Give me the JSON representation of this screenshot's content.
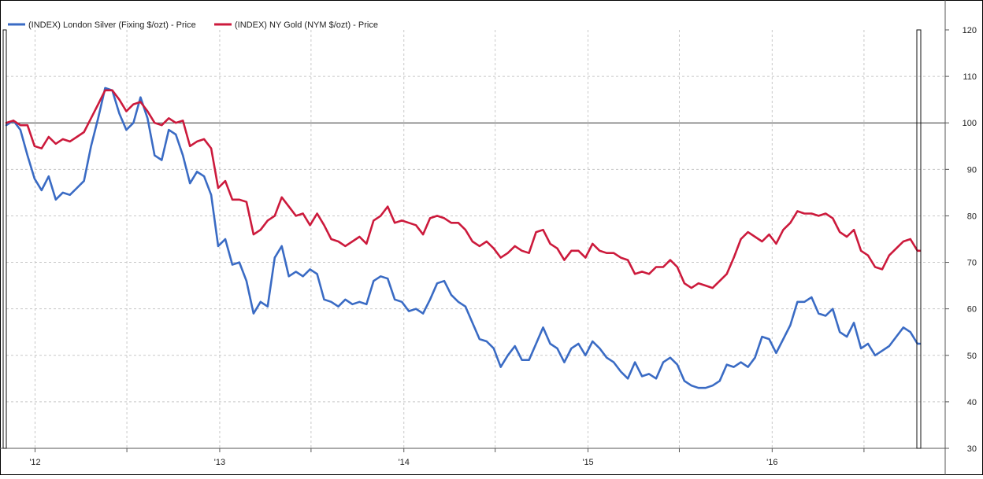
{
  "chart_data": {
    "type": "line",
    "title": "",
    "xlabel": "",
    "ylabel": "",
    "ylim": [
      30,
      120
    ],
    "y_ticks": [
      30,
      40,
      50,
      60,
      70,
      80,
      90,
      100,
      110,
      120
    ],
    "y_axis_side": "right",
    "x_ticks": [
      "'12",
      "'13",
      "'14",
      "'15",
      "'16"
    ],
    "x_range": [
      "2011-11-05",
      "2016-10-20"
    ],
    "x_tick_dates": [
      "2012-01-01",
      "2013-01-01",
      "2014-01-01",
      "2015-01-01",
      "2016-01-01"
    ],
    "reference_line": 100,
    "grid": true,
    "legend_position": "top-left",
    "series": [
      {
        "name": "(INDEX) London Silver (Fixing $/ozt) - Price",
        "color": "#3a6bc4",
        "points": [
          [
            "2011-11-05",
            99.5
          ],
          [
            "2011-11-19",
            100.5
          ],
          [
            "2011-12-03",
            98.5
          ],
          [
            "2011-12-17",
            93
          ],
          [
            "2011-12-31",
            88
          ],
          [
            "2012-01-14",
            85.5
          ],
          [
            "2012-01-28",
            88.5
          ],
          [
            "2012-02-11",
            83.5
          ],
          [
            "2012-02-25",
            85
          ],
          [
            "2012-03-10",
            84.5
          ],
          [
            "2012-03-24",
            86
          ],
          [
            "2012-04-07",
            87.5
          ],
          [
            "2012-04-21",
            95
          ],
          [
            "2012-05-05",
            101
          ],
          [
            "2012-05-19",
            107.5
          ],
          [
            "2012-06-02",
            107
          ],
          [
            "2012-06-16",
            102
          ],
          [
            "2012-06-30",
            98.5
          ],
          [
            "2012-07-14",
            100
          ],
          [
            "2012-07-28",
            105.5
          ],
          [
            "2012-08-11",
            101
          ],
          [
            "2012-08-25",
            93
          ],
          [
            "2012-09-08",
            92
          ],
          [
            "2012-09-22",
            98.5
          ],
          [
            "2012-10-06",
            97.5
          ],
          [
            "2012-10-20",
            93
          ],
          [
            "2012-11-03",
            87
          ],
          [
            "2012-11-17",
            89.5
          ],
          [
            "2012-12-01",
            88.5
          ],
          [
            "2012-12-15",
            84.5
          ],
          [
            "2012-12-29",
            73.5
          ],
          [
            "2013-01-12",
            75
          ],
          [
            "2013-01-26",
            69.5
          ],
          [
            "2013-02-09",
            70
          ],
          [
            "2013-02-23",
            66
          ],
          [
            "2013-03-09",
            59
          ],
          [
            "2013-03-23",
            61.5
          ],
          [
            "2013-04-06",
            60.5
          ],
          [
            "2013-04-20",
            71
          ],
          [
            "2013-05-04",
            73.5
          ],
          [
            "2013-05-18",
            67
          ],
          [
            "2013-06-01",
            68
          ],
          [
            "2013-06-15",
            67
          ],
          [
            "2013-06-29",
            68.5
          ],
          [
            "2013-07-13",
            67.5
          ],
          [
            "2013-07-27",
            62
          ],
          [
            "2013-08-10",
            61.5
          ],
          [
            "2013-08-24",
            60.5
          ],
          [
            "2013-09-07",
            62
          ],
          [
            "2013-09-21",
            61
          ],
          [
            "2013-10-05",
            61.5
          ],
          [
            "2013-10-19",
            61
          ],
          [
            "2013-11-02",
            66
          ],
          [
            "2013-11-16",
            67
          ],
          [
            "2013-11-30",
            66.5
          ],
          [
            "2013-12-14",
            62
          ],
          [
            "2013-12-28",
            61.5
          ],
          [
            "2014-01-11",
            59.5
          ],
          [
            "2014-01-25",
            60
          ],
          [
            "2014-02-08",
            59
          ],
          [
            "2014-02-22",
            62
          ],
          [
            "2014-03-08",
            65.5
          ],
          [
            "2014-03-22",
            66
          ],
          [
            "2014-04-05",
            63
          ],
          [
            "2014-04-19",
            61.5
          ],
          [
            "2014-05-03",
            60.5
          ],
          [
            "2014-05-17",
            57
          ],
          [
            "2014-05-31",
            53.5
          ],
          [
            "2014-06-14",
            53
          ],
          [
            "2014-06-28",
            51.5
          ],
          [
            "2014-07-12",
            47.5
          ],
          [
            "2014-07-26",
            50
          ],
          [
            "2014-08-09",
            52
          ],
          [
            "2014-08-23",
            49
          ],
          [
            "2014-09-06",
            49
          ],
          [
            "2014-09-20",
            52.5
          ],
          [
            "2014-10-04",
            56
          ],
          [
            "2014-10-18",
            52.5
          ],
          [
            "2014-11-01",
            51.5
          ],
          [
            "2014-11-15",
            48.5
          ],
          [
            "2014-11-29",
            51.5
          ],
          [
            "2014-12-13",
            52.5
          ],
          [
            "2014-12-27",
            50
          ],
          [
            "2015-01-10",
            53
          ],
          [
            "2015-01-24",
            51.5
          ],
          [
            "2015-02-07",
            49.5
          ],
          [
            "2015-02-21",
            48.5
          ],
          [
            "2015-03-07",
            46.5
          ],
          [
            "2015-03-21",
            45
          ],
          [
            "2015-04-04",
            48.5
          ],
          [
            "2015-04-18",
            45.5
          ],
          [
            "2015-05-02",
            46
          ],
          [
            "2015-05-16",
            45
          ],
          [
            "2015-05-30",
            48.5
          ],
          [
            "2015-06-13",
            49.5
          ],
          [
            "2015-06-27",
            48
          ],
          [
            "2015-07-11",
            44.5
          ],
          [
            "2015-07-25",
            43.5
          ],
          [
            "2015-08-08",
            43
          ],
          [
            "2015-08-22",
            43
          ],
          [
            "2015-09-05",
            43.5
          ],
          [
            "2015-09-19",
            44.5
          ],
          [
            "2015-10-03",
            48
          ],
          [
            "2015-10-17",
            47.5
          ],
          [
            "2015-10-31",
            48.5
          ],
          [
            "2015-11-14",
            47.5
          ],
          [
            "2015-11-28",
            49.5
          ],
          [
            "2015-12-12",
            54
          ],
          [
            "2015-12-26",
            53.5
          ],
          [
            "2016-01-09",
            50.5
          ],
          [
            "2016-01-23",
            53.5
          ],
          [
            "2016-02-06",
            56.5
          ],
          [
            "2016-02-20",
            61.5
          ],
          [
            "2016-03-05",
            61.5
          ],
          [
            "2016-03-19",
            62.5
          ],
          [
            "2016-04-02",
            59
          ],
          [
            "2016-04-16",
            58.5
          ],
          [
            "2016-04-30",
            60
          ],
          [
            "2016-05-14",
            55
          ],
          [
            "2016-05-28",
            54
          ],
          [
            "2016-06-11",
            57
          ],
          [
            "2016-06-25",
            51.5
          ],
          [
            "2016-07-09",
            52.5
          ],
          [
            "2016-07-23",
            50
          ],
          [
            "2016-08-06",
            51
          ],
          [
            "2016-08-20",
            52
          ],
          [
            "2016-09-03",
            54
          ],
          [
            "2016-09-17",
            56
          ],
          [
            "2016-10-01",
            55
          ],
          [
            "2016-10-15",
            52.5
          ],
          [
            "2016-10-20",
            52.5
          ]
        ]
      },
      {
        "name": "(INDEX) NY Gold (NYM $/ozt) - Price",
        "color": "#cc1a3c",
        "points": [
          [
            "2011-11-05",
            100
          ],
          [
            "2011-11-19",
            100.5
          ],
          [
            "2011-12-03",
            99.5
          ],
          [
            "2011-12-17",
            99.5
          ],
          [
            "2011-12-31",
            95
          ],
          [
            "2012-01-14",
            94.5
          ],
          [
            "2012-01-28",
            97
          ],
          [
            "2012-02-11",
            95.5
          ],
          [
            "2012-02-25",
            96.5
          ],
          [
            "2012-03-10",
            96
          ],
          [
            "2012-03-24",
            97
          ],
          [
            "2012-04-07",
            98
          ],
          [
            "2012-04-21",
            101
          ],
          [
            "2012-05-05",
            104
          ],
          [
            "2012-05-19",
            107
          ],
          [
            "2012-06-02",
            107
          ],
          [
            "2012-06-16",
            105
          ],
          [
            "2012-06-30",
            102.5
          ],
          [
            "2012-07-14",
            104
          ],
          [
            "2012-07-28",
            104.5
          ],
          [
            "2012-08-11",
            102.5
          ],
          [
            "2012-08-25",
            100
          ],
          [
            "2012-09-08",
            99.5
          ],
          [
            "2012-09-22",
            101
          ],
          [
            "2012-10-06",
            100
          ],
          [
            "2012-10-20",
            100.5
          ],
          [
            "2012-11-03",
            95
          ],
          [
            "2012-11-17",
            96
          ],
          [
            "2012-12-01",
            96.5
          ],
          [
            "2012-12-15",
            94.5
          ],
          [
            "2012-12-29",
            86
          ],
          [
            "2013-01-12",
            87.5
          ],
          [
            "2013-01-26",
            83.5
          ],
          [
            "2013-02-09",
            83.5
          ],
          [
            "2013-02-23",
            83
          ],
          [
            "2013-03-09",
            76
          ],
          [
            "2013-03-23",
            77
          ],
          [
            "2013-04-06",
            79
          ],
          [
            "2013-04-20",
            80
          ],
          [
            "2013-05-04",
            84
          ],
          [
            "2013-05-18",
            82
          ],
          [
            "2013-06-01",
            80
          ],
          [
            "2013-06-15",
            80.5
          ],
          [
            "2013-06-29",
            78
          ],
          [
            "2013-07-13",
            80.5
          ],
          [
            "2013-07-27",
            78
          ],
          [
            "2013-08-10",
            75
          ],
          [
            "2013-08-24",
            74.5
          ],
          [
            "2013-09-07",
            73.5
          ],
          [
            "2013-09-21",
            74.5
          ],
          [
            "2013-10-05",
            75.5
          ],
          [
            "2013-10-19",
            74
          ],
          [
            "2013-11-02",
            79
          ],
          [
            "2013-11-16",
            80
          ],
          [
            "2013-11-30",
            82
          ],
          [
            "2013-12-14",
            78.5
          ],
          [
            "2013-12-28",
            79
          ],
          [
            "2014-01-11",
            78.5
          ],
          [
            "2014-01-25",
            78
          ],
          [
            "2014-02-08",
            76
          ],
          [
            "2014-02-22",
            79.5
          ],
          [
            "2014-03-08",
            80
          ],
          [
            "2014-03-22",
            79.5
          ],
          [
            "2014-04-05",
            78.5
          ],
          [
            "2014-04-19",
            78.5
          ],
          [
            "2014-05-03",
            77
          ],
          [
            "2014-05-17",
            74.5
          ],
          [
            "2014-05-31",
            73.5
          ],
          [
            "2014-06-14",
            74.5
          ],
          [
            "2014-06-28",
            73
          ],
          [
            "2014-07-12",
            71
          ],
          [
            "2014-07-26",
            72
          ],
          [
            "2014-08-09",
            73.5
          ],
          [
            "2014-08-23",
            72.5
          ],
          [
            "2014-09-06",
            72
          ],
          [
            "2014-09-20",
            76.5
          ],
          [
            "2014-10-04",
            77
          ],
          [
            "2014-10-18",
            74
          ],
          [
            "2014-11-01",
            73
          ],
          [
            "2014-11-15",
            70.5
          ],
          [
            "2014-11-29",
            72.5
          ],
          [
            "2014-12-13",
            72.5
          ],
          [
            "2014-12-27",
            71
          ],
          [
            "2015-01-10",
            74
          ],
          [
            "2015-01-24",
            72.5
          ],
          [
            "2015-02-07",
            72
          ],
          [
            "2015-02-21",
            72
          ],
          [
            "2015-03-07",
            71
          ],
          [
            "2015-03-21",
            70.5
          ],
          [
            "2015-04-04",
            67.5
          ],
          [
            "2015-04-18",
            68
          ],
          [
            "2015-05-02",
            67.5
          ],
          [
            "2015-05-16",
            69
          ],
          [
            "2015-05-30",
            69
          ],
          [
            "2015-06-13",
            70.5
          ],
          [
            "2015-06-27",
            69
          ],
          [
            "2015-07-11",
            65.5
          ],
          [
            "2015-07-25",
            64.5
          ],
          [
            "2015-08-08",
            65.5
          ],
          [
            "2015-08-22",
            65
          ],
          [
            "2015-09-05",
            64.5
          ],
          [
            "2015-09-19",
            66
          ],
          [
            "2015-10-03",
            67.5
          ],
          [
            "2015-10-17",
            71
          ],
          [
            "2015-10-31",
            75
          ],
          [
            "2015-11-14",
            76.5
          ],
          [
            "2015-11-28",
            75.5
          ],
          [
            "2015-12-12",
            74.5
          ],
          [
            "2015-12-26",
            76
          ],
          [
            "2016-01-09",
            74
          ],
          [
            "2016-01-23",
            77
          ],
          [
            "2016-02-06",
            78.5
          ],
          [
            "2016-02-20",
            81
          ],
          [
            "2016-03-05",
            80.5
          ],
          [
            "2016-03-19",
            80.5
          ],
          [
            "2016-04-02",
            80
          ],
          [
            "2016-04-16",
            80.5
          ],
          [
            "2016-04-30",
            79.5
          ],
          [
            "2016-05-14",
            76.5
          ],
          [
            "2016-05-28",
            75.5
          ],
          [
            "2016-06-11",
            77
          ],
          [
            "2016-06-25",
            72.5
          ],
          [
            "2016-07-09",
            71.5
          ],
          [
            "2016-07-23",
            69
          ],
          [
            "2016-08-06",
            68.5
          ],
          [
            "2016-08-20",
            71.5
          ],
          [
            "2016-09-03",
            73
          ],
          [
            "2016-09-17",
            74.5
          ],
          [
            "2016-10-01",
            75
          ],
          [
            "2016-10-15",
            72.5
          ],
          [
            "2016-10-20",
            72.5
          ]
        ]
      }
    ]
  }
}
